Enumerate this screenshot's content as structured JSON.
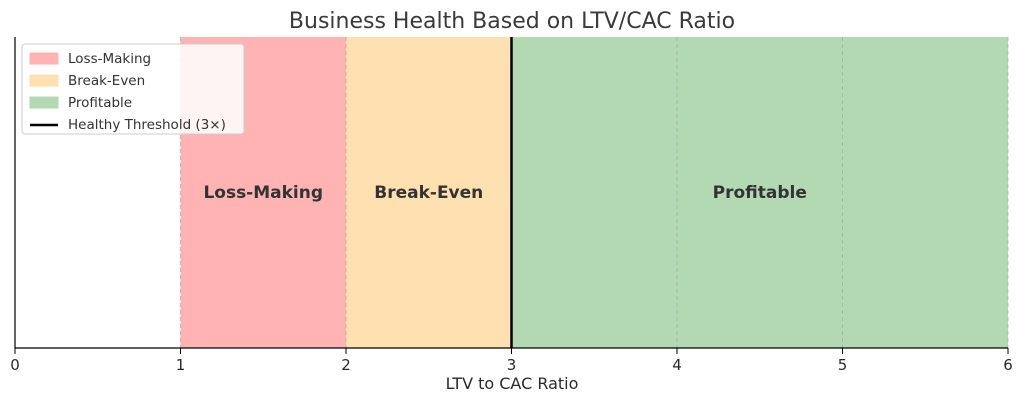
{
  "chart_data": {
    "type": "area",
    "title": "Business Health Based on LTV/CAC Ratio",
    "xlabel": "LTV to CAC Ratio",
    "ylabel": "",
    "xlim": [
      0,
      6
    ],
    "x_ticks": [
      0,
      1,
      2,
      3,
      4,
      5,
      6
    ],
    "grid": "vertical dashed",
    "legend_position": "top-left",
    "regions": [
      {
        "name": "Loss-Making",
        "label": "Loss-Making",
        "x_start": 1,
        "x_end": 2,
        "color": "#ffb3b3"
      },
      {
        "name": "Break-Even",
        "label": "Break-Even",
        "x_start": 2,
        "x_end": 3,
        "color": "#ffe0b0"
      },
      {
        "name": "Profitable",
        "label": "Profitable",
        "x_start": 3,
        "x_end": 6,
        "color": "#b3d9b3"
      }
    ],
    "threshold": {
      "name": "Healthy Threshold (3×)",
      "x": 3,
      "color": "#000000"
    }
  }
}
